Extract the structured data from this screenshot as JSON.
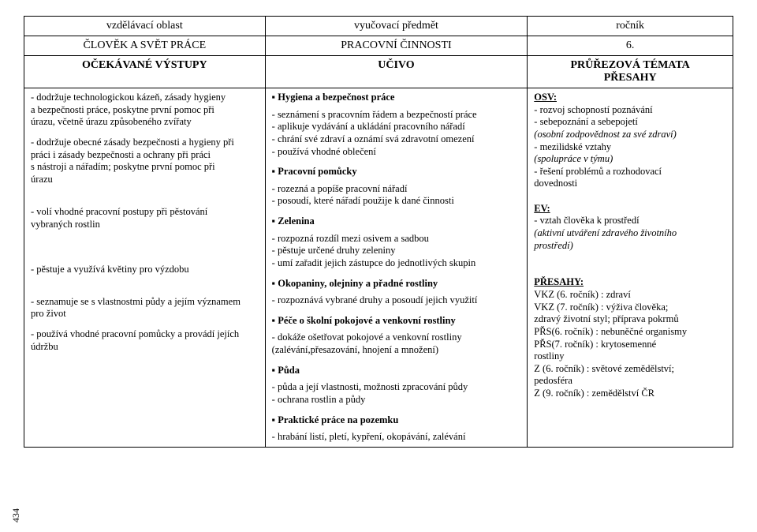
{
  "header": {
    "c1": "vzdělávací oblast",
    "c2": "vyučovací předmět",
    "c3": "ročník",
    "r2c1": "ČLOVĚK A SVĚT PRÁCE",
    "r2c2": "PRACOVNÍ ČINNOSTI",
    "r2c3": "6."
  },
  "subheader": {
    "c1": "OČEKÁVANÉ VÝSTUPY",
    "c2": "UČIVO",
    "c3_line1": "PRŮŘEZOVÁ TÉMATA",
    "c3_line2": "PŘESAHY"
  },
  "left": {
    "p1a": "- dodržuje technologickou kázeň, zásady hygieny",
    "p1b": "  a bezpečnosti práce, poskytne první pomoc při",
    "p1c": "  úrazu, včetně úrazu způsobeného zvířaty",
    "p2a": "- dodržuje obecné zásady bezpečnosti a hygieny při",
    "p2b": "  práci i zásady bezpečnosti a ochrany při práci",
    "p2c": "  s nástroji a nářadím; poskytne první pomoc při",
    "p2d": "  úrazu",
    "p3a": "- volí vhodné pracovní postupy při pěstování",
    "p3b": "  vybraných rostlin",
    "p4": "- pěstuje a využívá květiny pro výzdobu",
    "p5a": "- seznamuje se s vlastnostmi půdy a jejím významem",
    "p5b": "  pro život",
    "p6a": "- používá vhodné pracovní pomůcky a provádí jejích",
    "p6b": "  údržbu"
  },
  "mid": {
    "s1_title": "Hygiena a bezpečnost práce",
    "s1_l1": "- seznámení s pracovním řádem a bezpečností práce",
    "s1_l2": "- aplikuje vydávání a ukládání pracovního nářadí",
    "s1_l3": "- chrání své zdraví a oznámí svá zdravotní omezení",
    "s1_l4": "- používá vhodné oblečení",
    "s2_title": "Pracovní pomůcky",
    "s2_l1": "- rozezná a popíše pracovní nářadí",
    "s2_l2": "- posoudí, které nářadí použije k dané činnosti",
    "s3_title": "Zelenina",
    "s3_l1": "- rozpozná rozdíl mezi osivem a sadbou",
    "s3_l2": "- pěstuje určené druhy zeleniny",
    "s3_l3": "- umí zařadit jejich zástupce do jednotlivých skupin",
    "s4_title": "Okopaniny, olejniny a přadné rostliny",
    "s4_l1": "- rozpoznává vybrané druhy a posoudí jejich využití",
    "s5_title": "Péče o školní pokojové a venkovní rostliny",
    "s5_l1": "- dokáže ošetřovat pokojové a venkovní rostliny",
    "s5_l2": "  (zalévání,přesazování, hnojení a množení)",
    "s6_title": "Půda",
    "s6_l1": "- půda a její vlastnosti, možnosti zpracování půdy",
    "s6_l2": "- ochrana rostlin a půdy",
    "s7_title": "Praktické práce na pozemku",
    "s7_l1": "- hrabání listí, pletí, kypření, okopávání, zalévání"
  },
  "right": {
    "osv_label": "OSV:",
    "osv_l1": "- rozvoj schopností poznávání",
    "osv_l2": "- sebepoznání a sebepojetí",
    "osv_l3i": "(osobní zodpovědnost za své zdraví)",
    "osv_l4": "- mezilidské vztahy",
    "osv_l5i": "(spolupráce v týmu)",
    "osv_l6": "- řešení problémů a rozhodovací",
    "osv_l7": "  dovednosti",
    "ev_label": "EV:",
    "ev_l1": "- vztah člověka k prostředí",
    "ev_l2i": "(aktivní utváření zdravého životního",
    "ev_l3i": "prostředí)",
    "presahy_label": "PŘESAHY:",
    "p_l1": "VKZ (6. ročník) : zdraví",
    "p_l2": "VKZ (7. ročník) : výživa člověka;",
    "p_l3": "zdravý životní styl; příprava pokrmů",
    "p_l4": "PŘS(6. ročník) : nebuněčné organismy",
    "p_l5": "PŘS(7. ročník) : krytosemenné",
    "p_l6": "rostliny",
    "p_l7": "Z (6. ročník) : světové zemědělství;",
    "p_l8": "pedosféra",
    "p_l9": "Z (9. ročník) : zemědělství ČR"
  },
  "page_number": "434"
}
